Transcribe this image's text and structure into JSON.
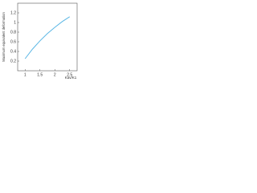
{
  "chart_data": {
    "type": "line",
    "y_label": "Maximum equivalent deformation",
    "x_label": "Kav/K1",
    "x": [
      1,
      1.25,
      1.5,
      1.75,
      2,
      2.25,
      2.5
    ],
    "series": [
      {
        "color": "#5bb7e5",
        "values": [
          0.25,
          0.45,
          0.62,
          0.77,
          0.9,
          1.02,
          1.12
        ]
      }
    ],
    "xlim": [
      0.75,
      2.75
    ],
    "xticks": [
      1,
      1.5,
      2,
      2.5
    ],
    "ylim": [
      0,
      1.4
    ],
    "yticks": [
      0.2,
      0.4,
      0.6,
      0.8,
      1,
      1.2
    ]
  }
}
